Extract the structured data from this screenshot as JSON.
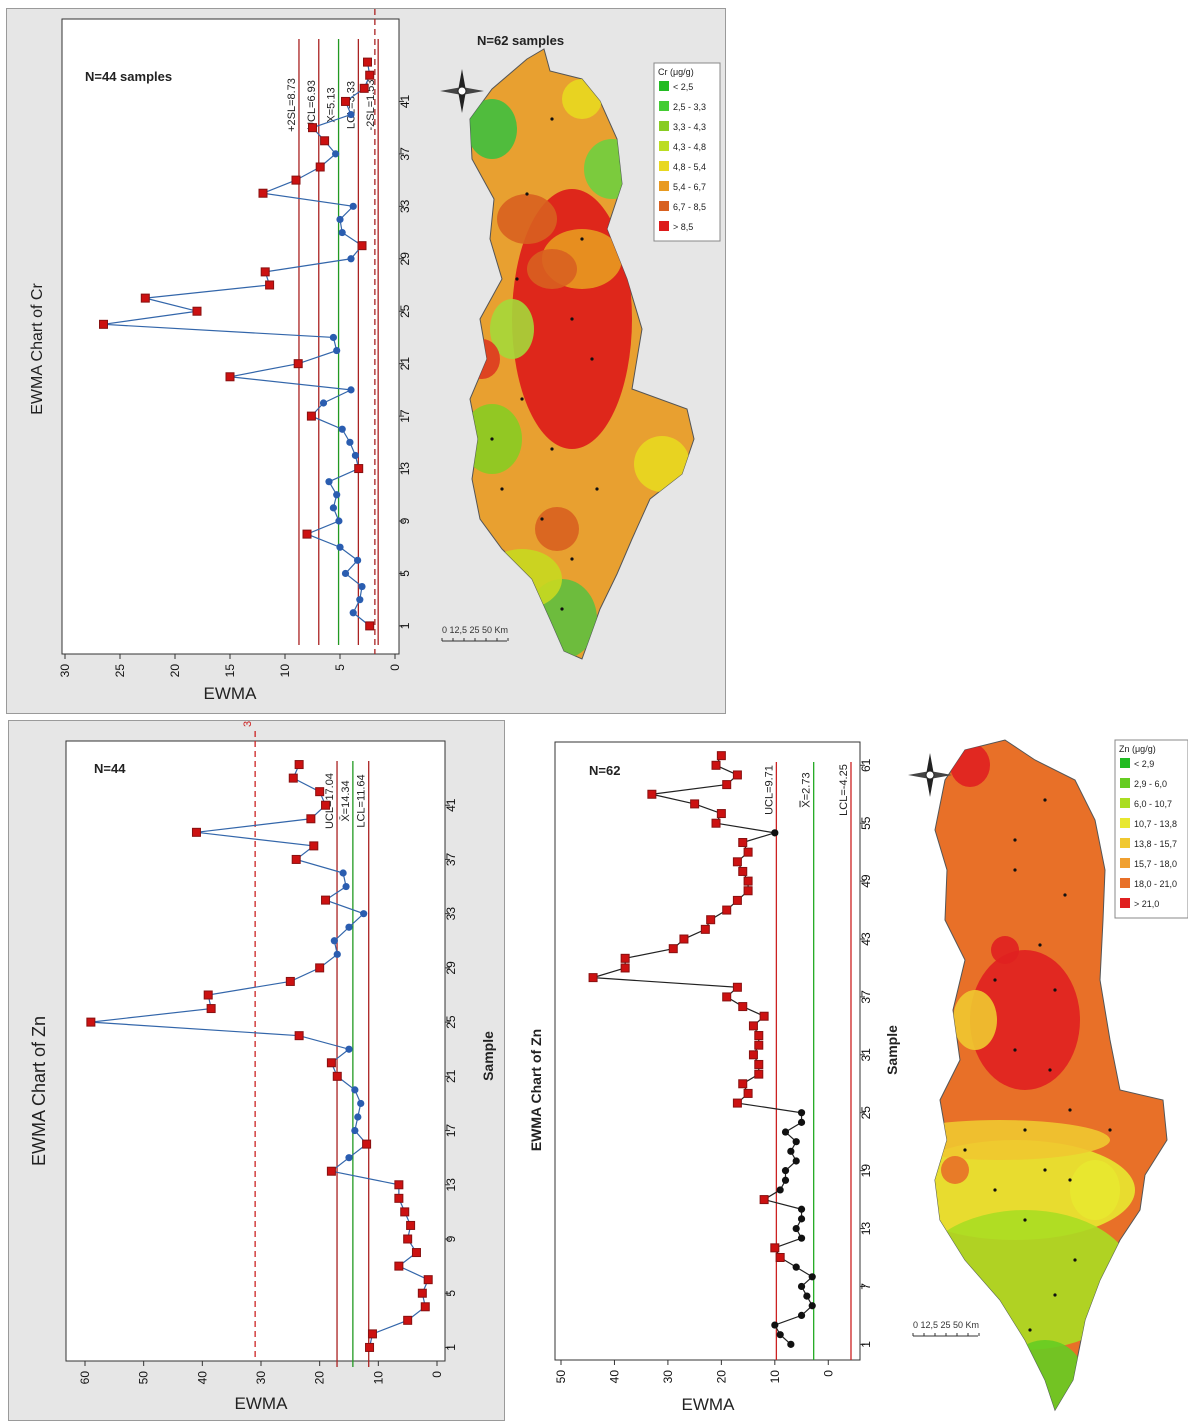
{
  "chart_data": [
    {
      "id": "cr_ewma",
      "type": "line",
      "title": "EWMA Chart of Cr",
      "note": "N=44 samples",
      "xlabel": "",
      "ylabel": "EWMA",
      "ylim": [
        0,
        30
      ],
      "yticks": [
        0,
        5,
        10,
        15,
        20,
        25,
        30
      ],
      "xlim": [
        0,
        45
      ],
      "xticks": [
        1,
        5,
        9,
        13,
        17,
        21,
        25,
        29,
        33,
        37,
        41
      ],
      "grid": false,
      "series": [
        {
          "color": "#3366aa",
          "x": [
            1,
            2,
            3,
            4,
            5,
            6,
            7,
            8,
            9,
            10,
            11,
            12,
            13,
            14,
            15,
            16,
            17,
            18,
            19,
            20,
            21,
            22,
            23,
            24,
            25,
            26,
            27,
            28,
            29,
            30,
            31,
            32,
            33,
            34,
            35,
            36,
            37,
            38,
            39,
            40,
            41,
            42,
            43,
            44
          ],
          "values": [
            2.3,
            3.8,
            3.2,
            3.0,
            4.5,
            3.4,
            5.0,
            8.0,
            5.1,
            5.6,
            5.3,
            6.0,
            3.3,
            3.6,
            4.1,
            4.8,
            7.6,
            6.5,
            4.0,
            15.0,
            8.8,
            5.3,
            5.6,
            26.5,
            18.0,
            22.7,
            11.4,
            11.8,
            4.0,
            3.0,
            4.8,
            5.0,
            3.8,
            12.0,
            9.0,
            6.8,
            5.4,
            6.4,
            7.5,
            4.0,
            4.5,
            2.8,
            2.3,
            2.5
          ],
          "flag": [
            1,
            0,
            0,
            0,
            0,
            0,
            0,
            1,
            0,
            0,
            0,
            0,
            1,
            0,
            0,
            0,
            1,
            0,
            0,
            1,
            1,
            0,
            0,
            1,
            1,
            1,
            1,
            1,
            0,
            1,
            0,
            0,
            0,
            1,
            1,
            1,
            0,
            1,
            1,
            0,
            1,
            1,
            1,
            1
          ]
        }
      ],
      "control_lines": [
        {
          "label": "+2SL=8.73",
          "value": 8.73,
          "color": "#aa2222",
          "dash": false
        },
        {
          "label": "UCL=6.93",
          "value": 6.93,
          "color": "#aa2222",
          "dash": false
        },
        {
          "label": "X=5.13",
          "value": 5.13,
          "color": "#229922",
          "dash": false
        },
        {
          "label": "LCL=3.33",
          "value": 3.33,
          "color": "#aa2222",
          "dash": false
        },
        {
          "label": "-2SL=1.53",
          "value": 1.53,
          "color": "#aa2222",
          "dash": false
        },
        {
          "label": "-1.83",
          "value": 1.83,
          "color": "#aa2222",
          "dash": true
        }
      ]
    },
    {
      "id": "zn_ewma_44",
      "type": "line",
      "title": "EWMA Chart of Zn",
      "note": "N=44",
      "xlabel": "Sample",
      "ylabel": "EWMA",
      "ylim": [
        0,
        60
      ],
      "yticks": [
        0,
        10,
        20,
        30,
        40,
        50,
        60
      ],
      "xlim": [
        0,
        45
      ],
      "xticks": [
        1,
        5,
        9,
        13,
        17,
        21,
        25,
        29,
        33,
        37,
        41
      ],
      "grid": false,
      "series": [
        {
          "color": "#3366aa",
          "x": [
            1,
            2,
            3,
            4,
            5,
            6,
            7,
            8,
            9,
            10,
            11,
            12,
            13,
            14,
            15,
            16,
            17,
            18,
            19,
            20,
            21,
            22,
            23,
            24,
            25,
            26,
            27,
            28,
            29,
            30,
            31,
            32,
            33,
            34,
            35,
            36,
            37,
            38,
            39,
            40,
            41,
            42,
            43,
            44
          ],
          "values": [
            11.5,
            11.0,
            5.0,
            2.0,
            2.5,
            1.5,
            6.5,
            3.5,
            5.0,
            4.5,
            5.5,
            6.5,
            6.5,
            18.0,
            15.0,
            12.0,
            14.0,
            13.5,
            13.0,
            14.0,
            17.0,
            18.0,
            15.0,
            23.5,
            59.0,
            38.5,
            39.0,
            25.0,
            20.0,
            17.0,
            17.5,
            15.0,
            12.5,
            19.0,
            15.5,
            16.0,
            24.0,
            21.0,
            41.0,
            21.5,
            19.0,
            20.0,
            24.5,
            23.5
          ],
          "flag": [
            1,
            1,
            1,
            1,
            1,
            1,
            1,
            1,
            1,
            1,
            1,
            1,
            1,
            1,
            0,
            1,
            0,
            0,
            0,
            0,
            1,
            1,
            0,
            1,
            1,
            1,
            1,
            1,
            1,
            0,
            0,
            0,
            0,
            1,
            0,
            0,
            1,
            1,
            1,
            1,
            1,
            1,
            1,
            1
          ]
        }
      ],
      "control_lines": [
        {
          "label": "UCL=17.04",
          "value": 17.04,
          "color": "#aa2222",
          "dash": false
        },
        {
          "label": "X̄=14.34",
          "value": 14.34,
          "color": "#229922",
          "dash": false
        },
        {
          "label": "LCL=11.64",
          "value": 11.64,
          "color": "#aa2222",
          "dash": false
        },
        {
          "label": "31",
          "value": 31,
          "color": "#cc2222",
          "dash": true
        }
      ]
    },
    {
      "id": "zn_ewma_62",
      "type": "line",
      "title": "EWMA Chart of Zn",
      "note": "N=62",
      "xlabel": "Sample",
      "ylabel": "EWMA",
      "ylim": [
        -5,
        50
      ],
      "yticks": [
        0,
        10,
        20,
        30,
        40,
        50
      ],
      "xlim": [
        0,
        63
      ],
      "xticks": [
        1,
        7,
        13,
        19,
        25,
        31,
        37,
        43,
        49,
        55,
        61
      ],
      "grid": false,
      "series": [
        {
          "color": "#222222",
          "x": [
            1,
            2,
            3,
            4,
            5,
            6,
            7,
            8,
            9,
            10,
            11,
            12,
            13,
            14,
            15,
            16,
            17,
            18,
            19,
            20,
            21,
            22,
            23,
            24,
            25,
            26,
            27,
            28,
            29,
            30,
            31,
            32,
            33,
            34,
            35,
            36,
            37,
            38,
            39,
            40,
            41,
            42,
            43,
            44,
            45,
            46,
            47,
            48,
            49,
            50,
            51,
            52,
            53,
            54,
            55,
            56,
            57,
            58,
            59,
            60,
            61,
            62
          ],
          "values": [
            7,
            9,
            10,
            5,
            3,
            4,
            5,
            3,
            6,
            9,
            10,
            5,
            6,
            5,
            5,
            12,
            9,
            8,
            8,
            6,
            7,
            6,
            8,
            5,
            5,
            17,
            15,
            16,
            13,
            13,
            14,
            13,
            13,
            14,
            12,
            16,
            19,
            17,
            44,
            38,
            38,
            29,
            27,
            23,
            22,
            19,
            17,
            15,
            15,
            16,
            17,
            15,
            16,
            10,
            21,
            20,
            25,
            33,
            19,
            17,
            21,
            20
          ],
          "flag": [
            0,
            0,
            0,
            0,
            0,
            0,
            0,
            0,
            0,
            1,
            1,
            0,
            0,
            0,
            0,
            1,
            0,
            0,
            0,
            0,
            0,
            0,
            0,
            0,
            0,
            1,
            1,
            1,
            1,
            1,
            1,
            1,
            1,
            1,
            1,
            1,
            1,
            1,
            1,
            1,
            1,
            1,
            1,
            1,
            1,
            1,
            1,
            1,
            1,
            1,
            1,
            1,
            1,
            0,
            1,
            1,
            1,
            1,
            1,
            1,
            1,
            1
          ]
        }
      ],
      "control_lines": [
        {
          "label": "UCL=9.71",
          "value": 9.71,
          "color": "#cc2222",
          "dash": false
        },
        {
          "label": "X̿=2.73",
          "value": 2.73,
          "color": "#22aa22",
          "dash": false
        },
        {
          "label": "LCL=-4.25",
          "value": -4.25,
          "color": "#cc2222",
          "dash": false
        }
      ]
    }
  ],
  "maps": [
    {
      "title": "N=62 samples",
      "legend_title": "Cr (μg/g)",
      "legend": [
        {
          "label": "< 2,5",
          "color": "#22bb22"
        },
        {
          "label": "2,5 - 3,3",
          "color": "#44cc33"
        },
        {
          "label": "3,3 - 4,3",
          "color": "#88cc22"
        },
        {
          "label": "4,3 - 4,8",
          "color": "#bbdd22"
        },
        {
          "label": "4,8 - 5,4",
          "color": "#e8d820"
        },
        {
          "label": "5,4 - 6,7",
          "color": "#e89a20"
        },
        {
          "label": "6,7 - 8,5",
          "color": "#d86020"
        },
        {
          "label": "> 8,5",
          "color": "#dd1a1a"
        }
      ],
      "scale": "0  12,5 25      50 Km"
    },
    {
      "title": "",
      "legend_title": "Zn (μg/g)",
      "legend": [
        {
          "label": "< 2,9",
          "color": "#22bb22"
        },
        {
          "label": "2,9 - 6,0",
          "color": "#66cc22"
        },
        {
          "label": "6,0 - 10,7",
          "color": "#aadd22"
        },
        {
          "label": "10,7 - 13,8",
          "color": "#e8e830"
        },
        {
          "label": "13,8 - 15,7",
          "color": "#f0c830"
        },
        {
          "label": "15,7 - 18,0",
          "color": "#f0a030"
        },
        {
          "label": "18,0 - 21,0",
          "color": "#e87028"
        },
        {
          "label": "> 21,0",
          "color": "#e02020"
        }
      ],
      "scale": "0  12,5 25      50 Km"
    }
  ]
}
